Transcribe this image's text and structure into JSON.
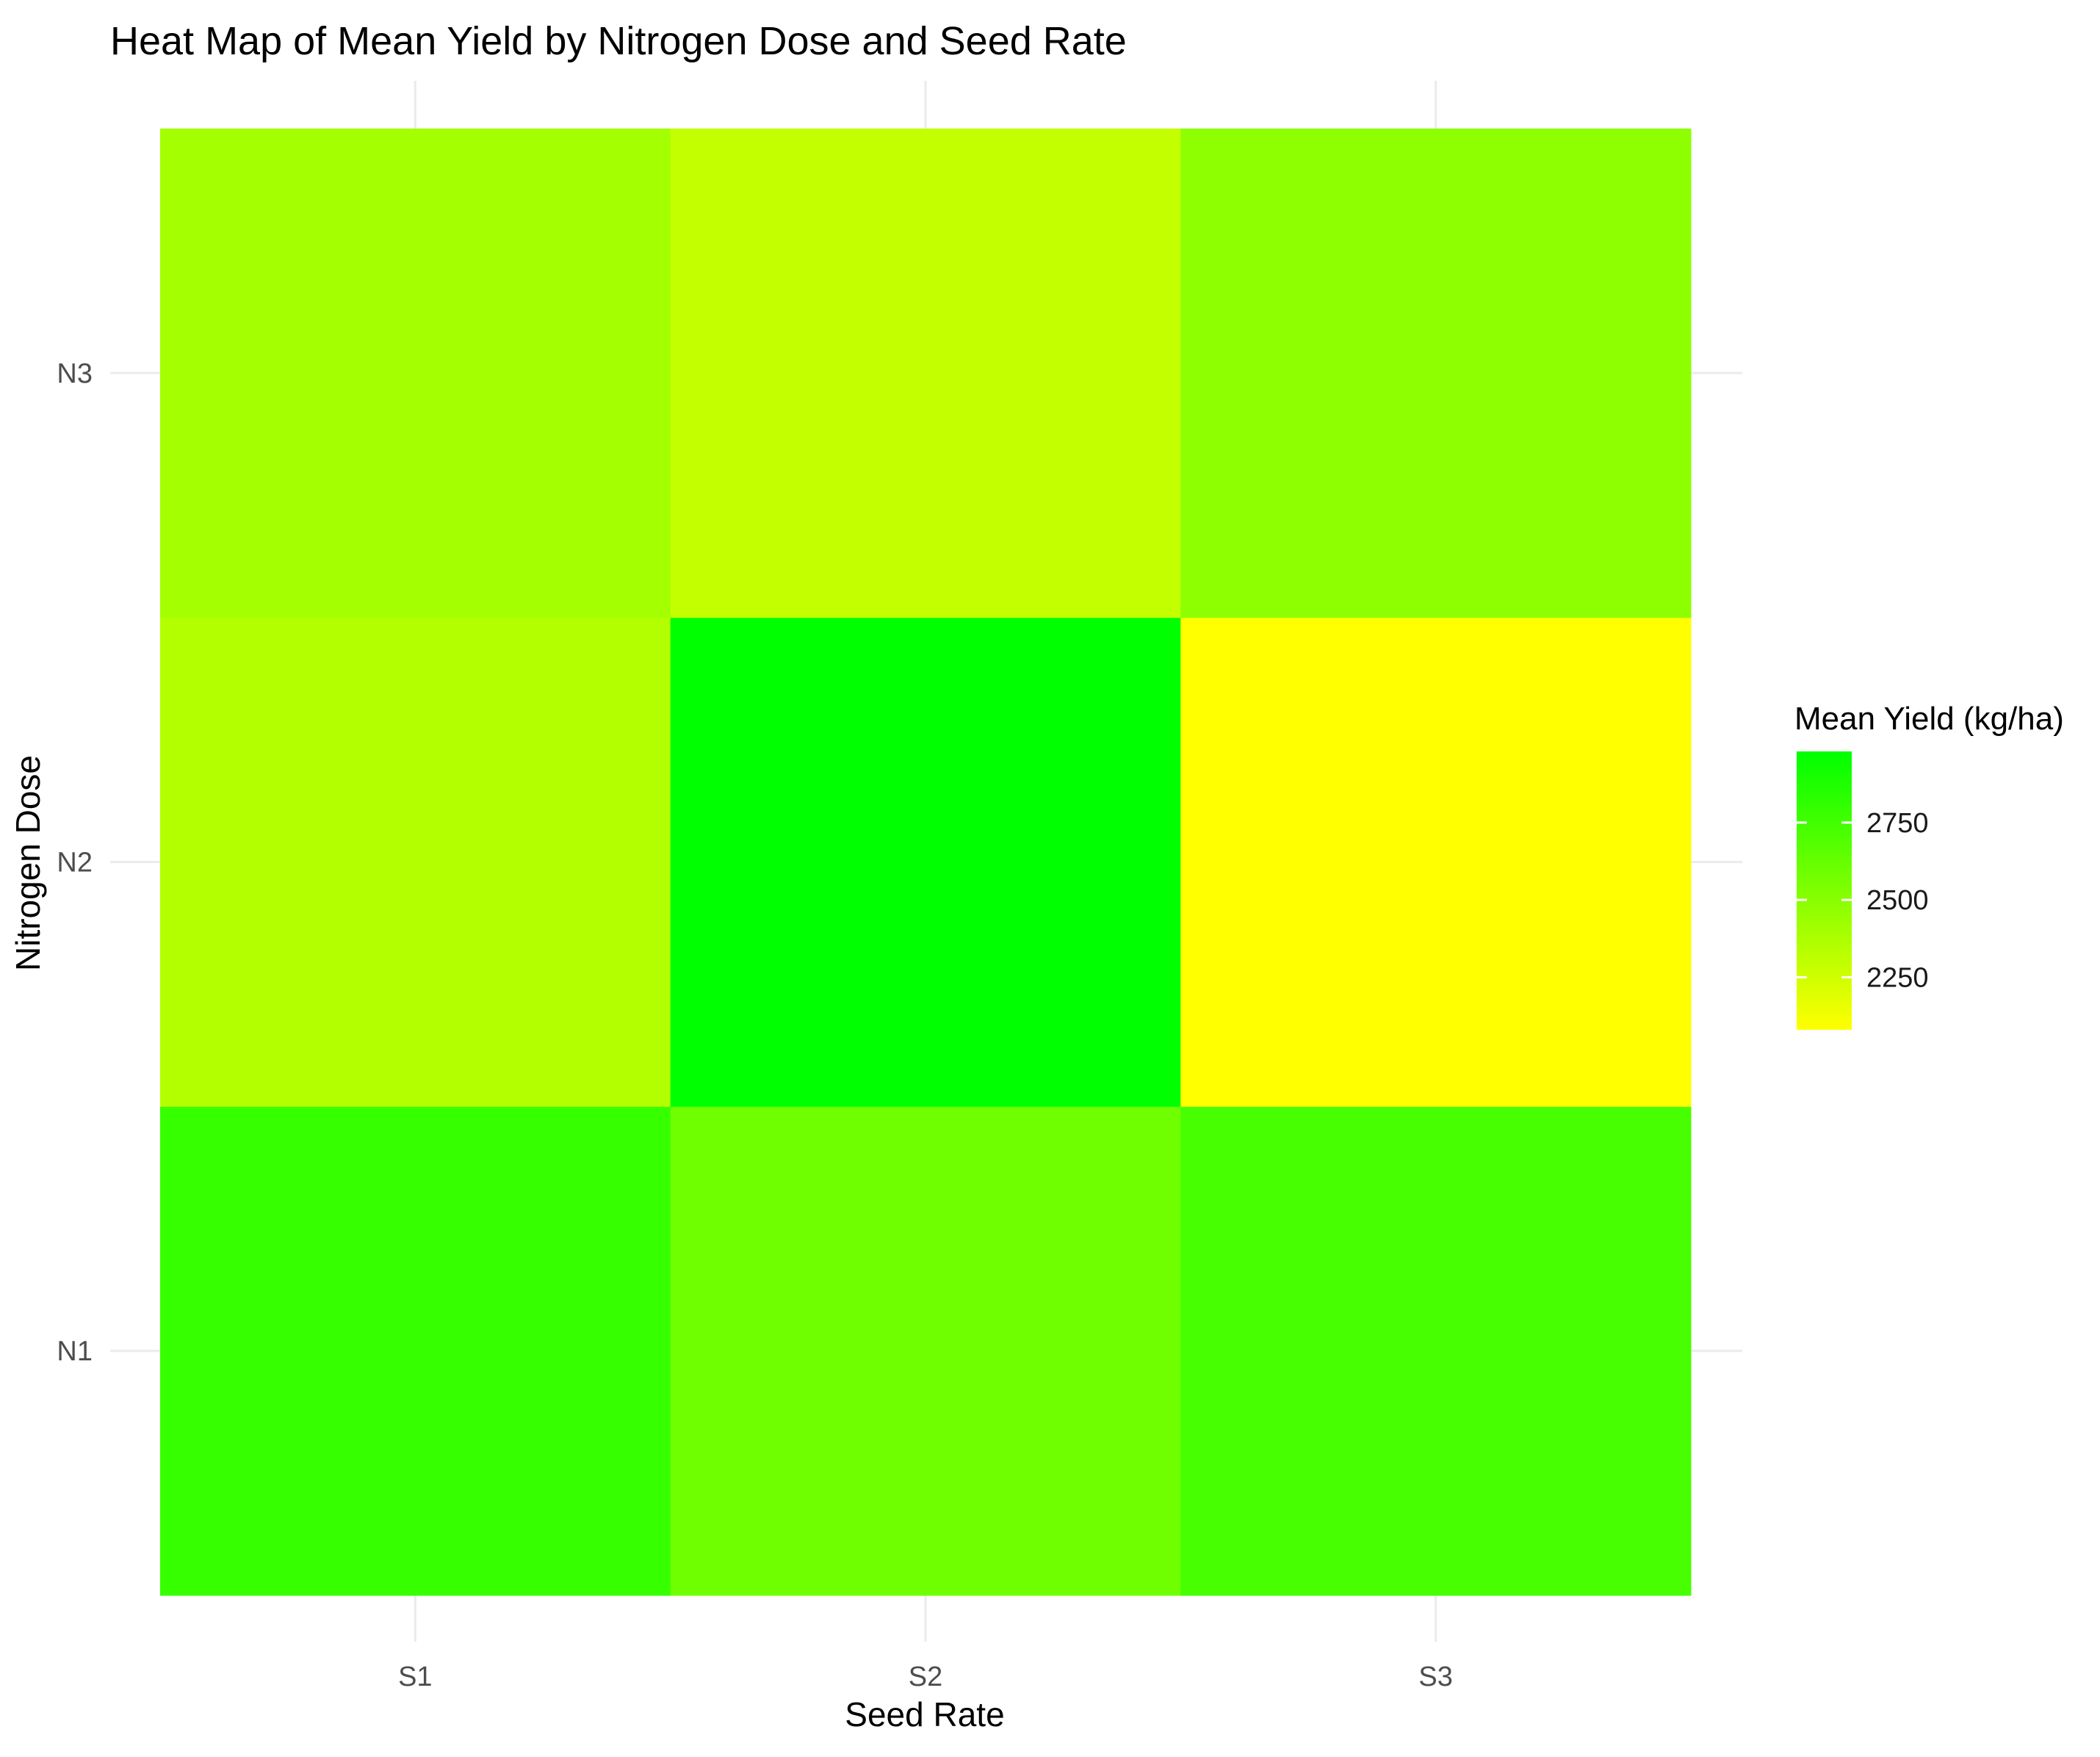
{
  "chart_data": {
    "type": "heatmap",
    "title": "Heat Map of Mean Yield by Nitrogen Dose and Seed Rate",
    "xlabel": "Seed Rate",
    "ylabel": "Nitrogen Dose",
    "x_categories": [
      "S1",
      "S2",
      "S3"
    ],
    "y_categories": [
      "N1",
      "N2",
      "N3"
    ],
    "cells": [
      {
        "x": "S1",
        "y": "N1",
        "value": 2790
      },
      {
        "x": "S2",
        "y": "N1",
        "value": 2590
      },
      {
        "x": "S3",
        "y": "N1",
        "value": 2730
      },
      {
        "x": "S1",
        "y": "N2",
        "value": 2350
      },
      {
        "x": "S2",
        "y": "N2",
        "value": 2980
      },
      {
        "x": "S3",
        "y": "N2",
        "value": 2080
      },
      {
        "x": "S1",
        "y": "N3",
        "value": 2400
      },
      {
        "x": "S2",
        "y": "N3",
        "value": 2290
      },
      {
        "x": "S3",
        "y": "N3",
        "value": 2480
      }
    ],
    "color_scale": {
      "low_color": "#ffff00",
      "high_color": "#00ff00",
      "min": 2080,
      "max": 2980
    },
    "legend": {
      "title": "Mean Yield (kg/ha)",
      "ticks": [
        2250,
        2500,
        2750
      ],
      "placement": "right"
    },
    "grid": true
  }
}
